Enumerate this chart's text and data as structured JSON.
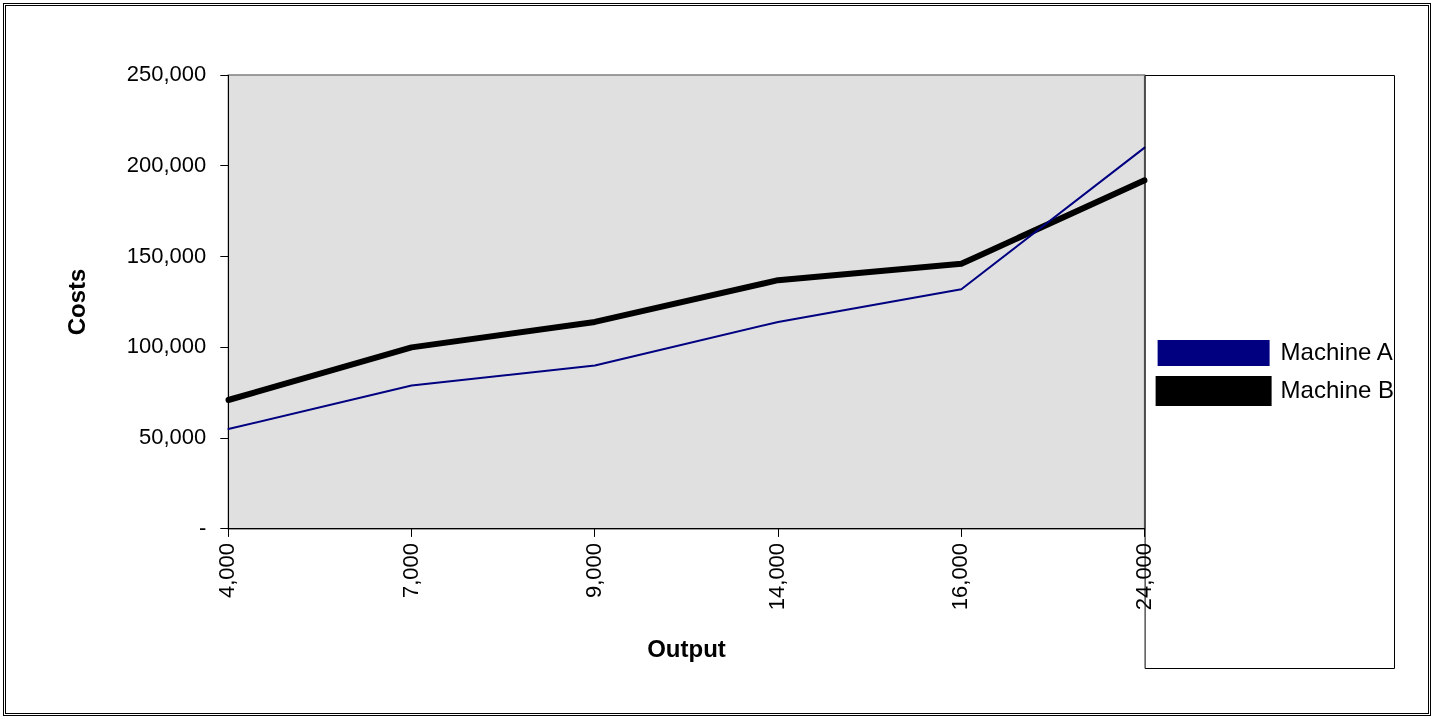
{
  "chart_data": {
    "type": "line",
    "xlabel": "Output",
    "ylabel": "Costs",
    "categories": [
      "4,000",
      "7,000",
      "9,000",
      "14,000",
      "16,000",
      "24,000"
    ],
    "series": [
      {
        "name": "Machine A",
        "color": "#000080",
        "values": [
          55000,
          79000,
          90000,
          114000,
          132000,
          210000
        ]
      },
      {
        "name": "Machine B",
        "color": "#000000",
        "values": [
          71000,
          100000,
          114000,
          137000,
          146000,
          192000
        ]
      }
    ],
    "ylim": [
      0,
      250000
    ],
    "yticks": [
      {
        "value": 0,
        "label": "-"
      },
      {
        "value": 50000,
        "label": "50,000"
      },
      {
        "value": 100000,
        "label": "100,000"
      },
      {
        "value": 150000,
        "label": "150,000"
      },
      {
        "value": 200000,
        "label": "200,000"
      },
      {
        "value": 250000,
        "label": "250,000"
      }
    ],
    "grid": false,
    "legend": "right",
    "marker": "none",
    "line_style": "solid"
  }
}
